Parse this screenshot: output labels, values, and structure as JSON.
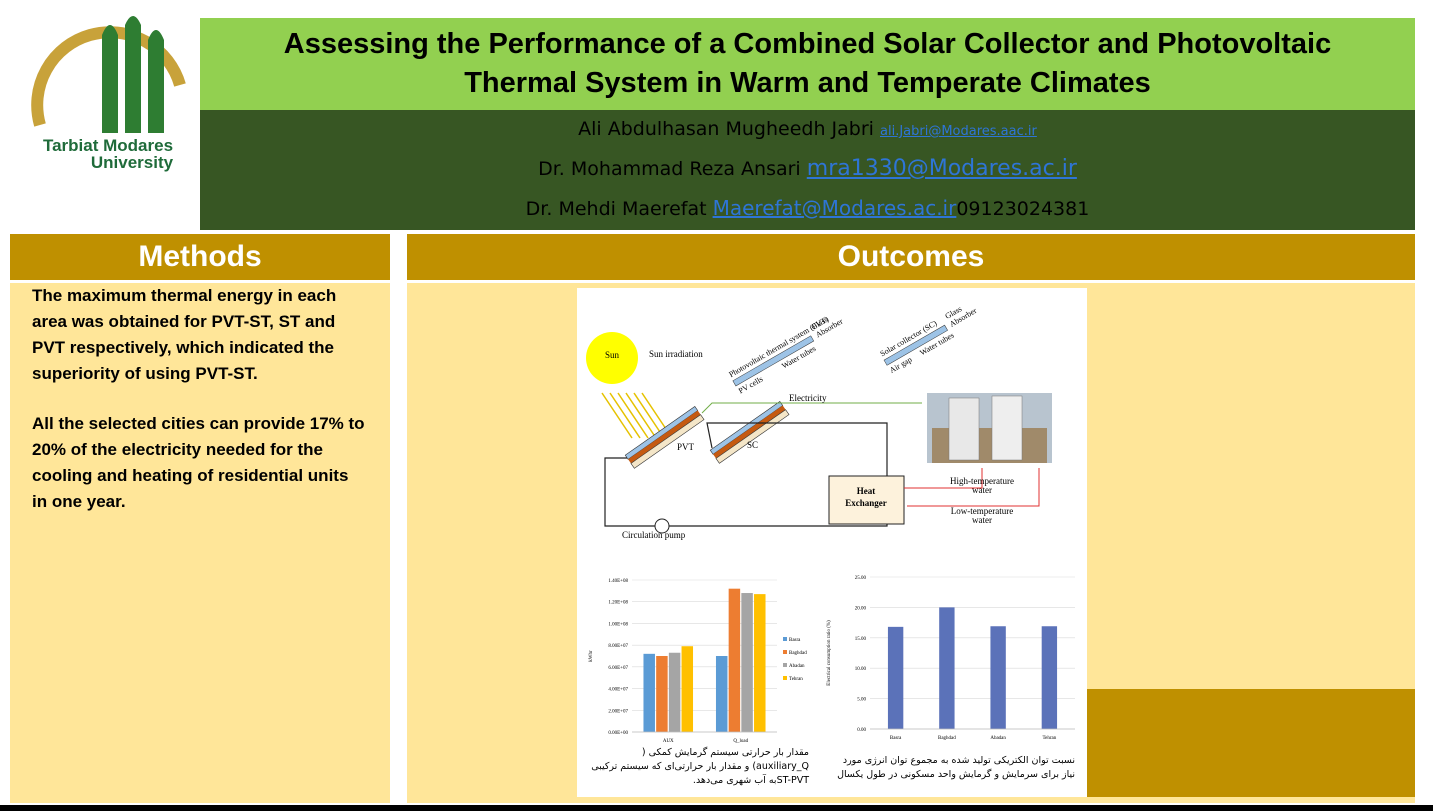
{
  "header": {
    "title": "Assessing the Performance of a Combined Solar Collector and Photovoltaic Thermal System in Warm and Temperate Climates",
    "logo_text": [
      "Tarbiat Modares",
      "University"
    ]
  },
  "authors": [
    {
      "name": "Ali Abdulhasan Mugheedh Jabri",
      "email": "ali.Jabri@Modares.aac.ir"
    },
    {
      "name": "Dr. Mohammad Reza Ansari",
      "email": "mra1330@Modares.ac.ir"
    },
    {
      "name": "Dr. Mehdi Maerefat",
      "email": "Maerefat@Modares.ac.ir",
      "phone": "09123024381"
    }
  ],
  "methods": {
    "heading": "Methods",
    "paragraphs": [
      " The maximum thermal energy in each area was obtained for PVT-ST, ST and PVT respectively, which indicated the superiority of using PVT-ST.",
      "All the selected cities can provide 17% to 20% of the electricity needed for the cooling and heating of residential units in one year."
    ]
  },
  "outcomes": {
    "heading": "Outcomes",
    "diagram": {
      "sun": "Sun",
      "irradiation": "Sun irradiation",
      "pvt_title": "Photovoltaic thermal system (PVT)",
      "pvt_layers": [
        "Glass",
        "Absorber",
        "PV cells",
        "Water tubes"
      ],
      "sc_title": "Solar collector (SC)",
      "sc_layers": [
        "Glass",
        "Absorber",
        "Air gap",
        "Water tubes"
      ],
      "electricity": "Electricity",
      "pvt": "PVT",
      "sc": "SC",
      "heat_exchanger": [
        "Heat",
        "Exchanger"
      ],
      "high_water": [
        "High-temperature",
        "water"
      ],
      "low_water": [
        "Low-temperature",
        "water"
      ],
      "pump": "Circulation pump"
    },
    "charts": [
      {
        "type": "bar",
        "y_label": "kWhr",
        "categories": [
          "AUX",
          "Q_load"
        ],
        "series": [
          {
            "name": "Basra",
            "color": "#5b9bd5",
            "values": [
              72000000,
              70000000
            ]
          },
          {
            "name": "Baghdad",
            "color": "#ed7d31",
            "values": [
              70000000,
              132000000
            ]
          },
          {
            "name": "Abadan",
            "color": "#a5a5a5",
            "values": [
              73000000,
              128000000
            ]
          },
          {
            "name": "Tehran",
            "color": "#ffc000",
            "values": [
              79000000,
              127000000
            ]
          }
        ],
        "ylim": [
          0,
          140000000
        ],
        "yticks": [
          {
            "value": 0,
            "label": "0.00E+00"
          },
          {
            "value": 20000000,
            "label": "2.00E+07"
          },
          {
            "value": 40000000,
            "label": "4.00E+07"
          },
          {
            "value": 60000000,
            "label": "6.00E+07"
          },
          {
            "value": 80000000,
            "label": "8.00E+07"
          },
          {
            "value": 100000000,
            "label": "1.00E+08"
          },
          {
            "value": 120000000,
            "label": "1.20E+08"
          },
          {
            "value": 140000000,
            "label": "1.40E+08"
          }
        ],
        "grid": true
      },
      {
        "type": "bar",
        "y_label": "Electrical consumption ratio (%)",
        "categories": [
          "Basra",
          "Baghdad",
          "Abadan",
          "Tehran"
        ],
        "values": [
          16.8,
          20.0,
          16.9,
          16.9
        ],
        "color": "#5b72b9",
        "ylim": [
          0,
          25
        ],
        "yticks": [
          {
            "value": 0,
            "label": "0.00"
          },
          {
            "value": 5,
            "label": "5.00"
          },
          {
            "value": 10,
            "label": "10.00"
          },
          {
            "value": 15,
            "label": "15.00"
          },
          {
            "value": 20,
            "label": "20.00"
          },
          {
            "value": 25,
            "label": "25.00"
          }
        ],
        "grid": true
      }
    ],
    "captions": [
      "مقدار بار حرارتی سیستم گرمایش کمکی ( auxiliary_Q) و مقدار بار حرارتی‌ای که سیستم ترکیبی  ST-PVTبه آب شهری می‌دهد.",
      "نسبت توان الکتریکی تولید شده به مجموع توان انرژی مورد نیاز برای سرمایش و گرمایش واحد مسکونی در طول یکسال"
    ]
  }
}
